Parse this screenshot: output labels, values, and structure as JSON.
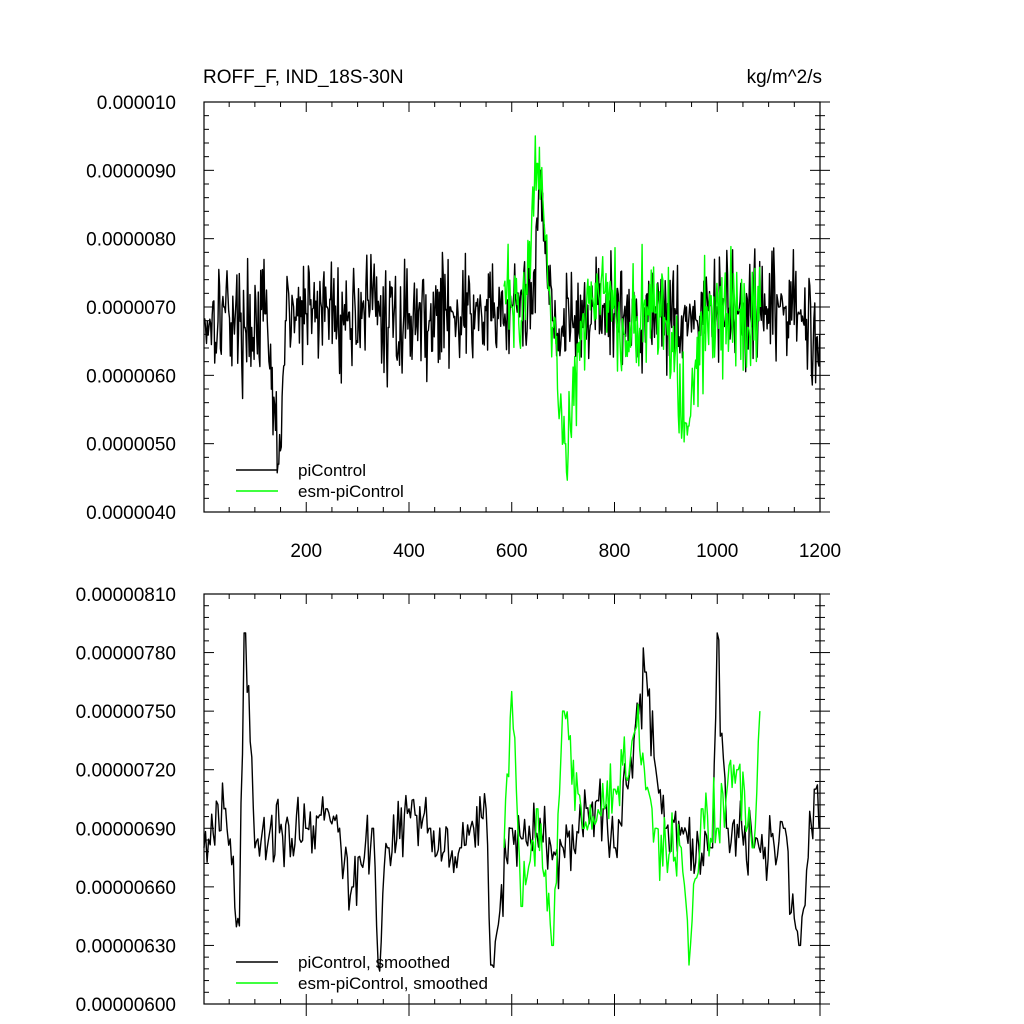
{
  "figure": {
    "title_left": "ROFF_F, IND_18S-30N",
    "title_right": "kg/m^2/s"
  },
  "chart_data": [
    {
      "type": "line",
      "panel": "top",
      "xlim": [
        1,
        1200
      ],
      "ylim": [
        4e-06,
        1e-05
      ],
      "xticks": [
        200,
        400,
        600,
        800,
        1000,
        1200
      ],
      "xtick_labels": [
        "200",
        "400",
        "600",
        "800",
        "1000",
        "1200"
      ],
      "yticks": [
        4e-06,
        5e-06,
        6e-06,
        7e-06,
        8e-06,
        9e-06,
        1e-05
      ],
      "ytick_labels": [
        "0.0000040",
        "0.0000050",
        "0.0000060",
        "0.0000070",
        "0.0000080",
        "0.0000090",
        "0.000010"
      ],
      "grid": false,
      "legend_position": "bottom-left",
      "series": [
        {
          "name": "piControl",
          "color": "#000000",
          "x_range": [
            1,
            1200
          ],
          "noisy": true,
          "x": [
            1,
            40,
            80,
            120,
            146,
            160,
            200,
            240,
            280,
            320,
            360,
            400,
            440,
            480,
            520,
            560,
            600,
            640,
            656,
            680,
            720,
            760,
            800,
            840,
            880,
            920,
            960,
            1000,
            1040,
            1080,
            1120,
            1160,
            1200
          ],
          "y": [
            6.8e-06,
            7e-06,
            6.7e-06,
            6.9e-06,
            4.7e-06,
            6.8e-06,
            6.9e-06,
            7e-06,
            6.8e-06,
            7.1e-06,
            6.7e-06,
            6.9e-06,
            6.8e-06,
            7e-06,
            6.9e-06,
            6.8e-06,
            7e-06,
            6.9e-06,
            9e-06,
            6.8e-06,
            6.7e-06,
            7e-06,
            6.9e-06,
            6.8e-06,
            7e-06,
            6.9e-06,
            6.8e-06,
            7e-06,
            6.9e-06,
            6.8e-06,
            7e-06,
            6.9e-06,
            6.6e-06
          ]
        },
        {
          "name": "esm-piControl",
          "color": "#00ff00",
          "x_range": [
            585,
            1085
          ],
          "noisy": true,
          "x": [
            585,
            600,
            620,
            650,
            680,
            705,
            740,
            780,
            820,
            860,
            900,
            940,
            980,
            1020,
            1060,
            1085
          ],
          "y": [
            7.3e-06,
            7e-06,
            6.8e-06,
            9.1e-06,
            6.7e-06,
            5e-06,
            6.9e-06,
            7.2e-06,
            6.6e-06,
            7.1e-06,
            6.8e-06,
            5.3e-06,
            7e-06,
            6.9e-06,
            6.7e-06,
            7e-06
          ]
        }
      ]
    },
    {
      "type": "line",
      "panel": "bottom",
      "xlim": [
        1,
        1200
      ],
      "ylim": [
        6e-06,
        8.1e-06
      ],
      "xticks": [
        200,
        400,
        600,
        800,
        1000,
        1200
      ],
      "yticks": [
        6e-06,
        6.3e-06,
        6.6e-06,
        6.9e-06,
        7.2e-06,
        7.5e-06,
        7.8e-06,
        8.1e-06
      ],
      "ytick_labels": [
        "0.00000600",
        "0.00000630",
        "0.00000660",
        "0.00000690",
        "0.00000720",
        "0.00000750",
        "0.00000780",
        "0.00000810"
      ],
      "grid": false,
      "legend_position": "bottom-left",
      "series": [
        {
          "name": "piControl, smoothed",
          "color": "#000000",
          "x_range": [
            1,
            1200
          ],
          "noisy": true,
          "x": [
            1,
            40,
            70,
            80,
            100,
            130,
            200,
            240,
            290,
            330,
            340,
            360,
            400,
            440,
            500,
            550,
            560,
            600,
            700,
            780,
            800,
            860,
            900,
            990,
            1000,
            1020,
            1070,
            1130,
            1160,
            1190,
            1200
          ],
          "y": [
            6.8e-06,
            7e-06,
            6.4e-06,
            7.9e-06,
            6.8e-06,
            6.9e-06,
            6.9e-06,
            7e-06,
            6.6e-06,
            6.9e-06,
            6.2e-06,
            6.8e-06,
            7e-06,
            6.9e-06,
            6.8e-06,
            7e-06,
            6.2e-06,
            6.9e-06,
            6.8e-06,
            7e-06,
            6.8e-06,
            7.7e-06,
            6.9e-06,
            6.8e-06,
            7.9e-06,
            6.9e-06,
            6.8e-06,
            6.9e-06,
            6.3e-06,
            7.1e-06,
            6.9e-06
          ]
        },
        {
          "name": "esm-piControl, smoothed",
          "color": "#00ff00",
          "x_range": [
            585,
            1085
          ],
          "noisy": true,
          "x": [
            585,
            600,
            620,
            650,
            680,
            700,
            740,
            780,
            800,
            840,
            880,
            900,
            930,
            945,
            970,
            1000,
            1040,
            1070,
            1085
          ],
          "y": [
            6.8e-06,
            7.6e-06,
            6.5e-06,
            7e-06,
            6.3e-06,
            7.5e-06,
            6.9e-06,
            7e-06,
            7.1e-06,
            7.4e-06,
            6.9e-06,
            6.8e-06,
            6.8e-06,
            6.2e-06,
            7e-06,
            6.9e-06,
            7.2e-06,
            6.8e-06,
            7.5e-06
          ]
        }
      ]
    }
  ]
}
